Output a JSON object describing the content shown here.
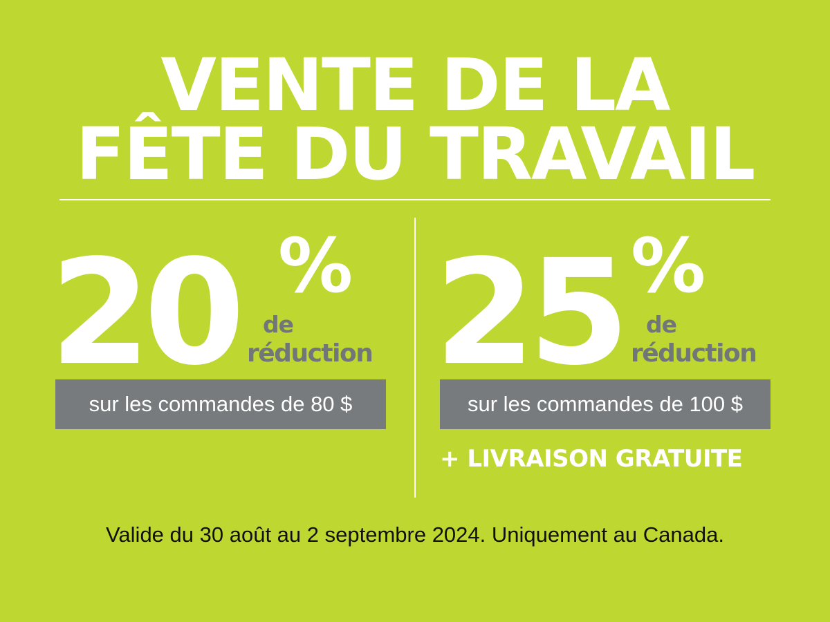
{
  "title": {
    "line1": "VENTE DE LA",
    "line2": "FÊTE DU TRAVAIL"
  },
  "offers": [
    {
      "percent_value": "20",
      "percent_symbol": "%",
      "de": "de",
      "reduction": "réduction",
      "condition": "sur les commandes de 80 $"
    },
    {
      "percent_value": "25",
      "percent_symbol": "%",
      "de": "de",
      "reduction": "réduction",
      "condition": "sur les commandes de 100 $",
      "extra": "+ LIVRAISON GRATUITE"
    }
  ],
  "footer": {
    "text": "Valide du 30 août au 2 septembre 2024. Uniquement au Canada."
  },
  "colors": {
    "background": "#bfd731",
    "text_primary": "#ffffff",
    "text_secondary": "#717678",
    "box_background": "#777b7e",
    "footer_text": "#111111"
  }
}
